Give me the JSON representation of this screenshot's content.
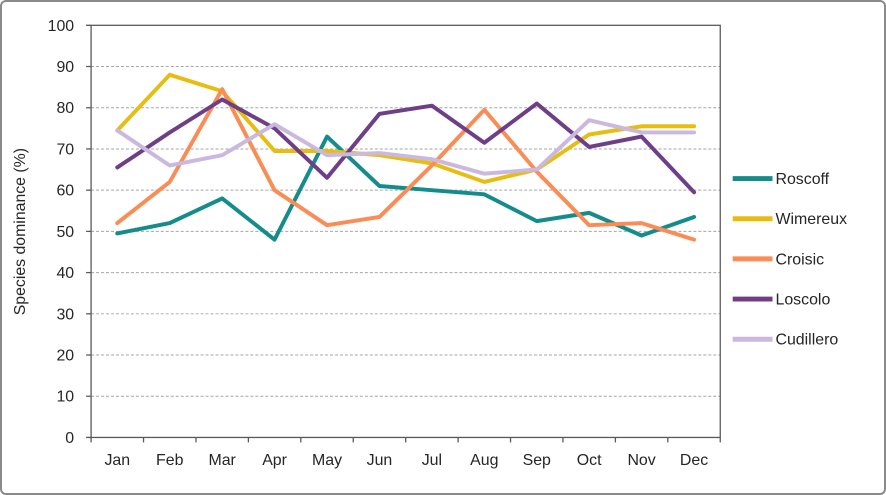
{
  "chart_data": {
    "type": "line",
    "title": "",
    "xlabel": "",
    "ylabel": "Species dominance (%)",
    "ylim": [
      0,
      100
    ],
    "yticks": [
      0,
      10,
      20,
      30,
      40,
      50,
      60,
      70,
      80,
      90,
      100
    ],
    "grid": "horizontal-dashed",
    "legend_position": "right",
    "categories": [
      "Jan",
      "Feb",
      "Mar",
      "Apr",
      "May",
      "Jun",
      "Jul",
      "Aug",
      "Sep",
      "Oct",
      "Nov",
      "Dec"
    ],
    "series": [
      {
        "name": "Roscoff",
        "color": "#148C8C",
        "values": [
          49.5,
          52,
          58,
          48,
          73,
          61,
          60,
          59,
          52.5,
          54.5,
          49,
          53.5
        ]
      },
      {
        "name": "Wimereux",
        "color": "#E8BD12",
        "values": [
          74.5,
          88,
          84,
          69.5,
          69.5,
          68.5,
          66.5,
          62,
          65,
          73.5,
          75.5,
          75.5
        ]
      },
      {
        "name": "Croisic",
        "color": "#FA8C55",
        "values": [
          52,
          62,
          84.5,
          60,
          51.5,
          53.5,
          66,
          79.5,
          64.5,
          51.5,
          52,
          48
        ]
      },
      {
        "name": "Loscolo",
        "color": "#6E3F87",
        "values": [
          65.5,
          74,
          82,
          75,
          63,
          78.5,
          80.5,
          71.5,
          81,
          70.5,
          73,
          59.5
        ]
      },
      {
        "name": "Cudillero",
        "color": "#CBB8DE",
        "values": [
          74.5,
          66,
          68.5,
          76,
          68.5,
          69,
          67.5,
          64,
          65,
          77,
          74,
          74
        ]
      }
    ]
  },
  "colors": {
    "axis": "#595959",
    "gridline": "#A6A6A6",
    "text": "#262626",
    "frame_border": "#8A8A8A",
    "background": "#FFFFFF"
  }
}
